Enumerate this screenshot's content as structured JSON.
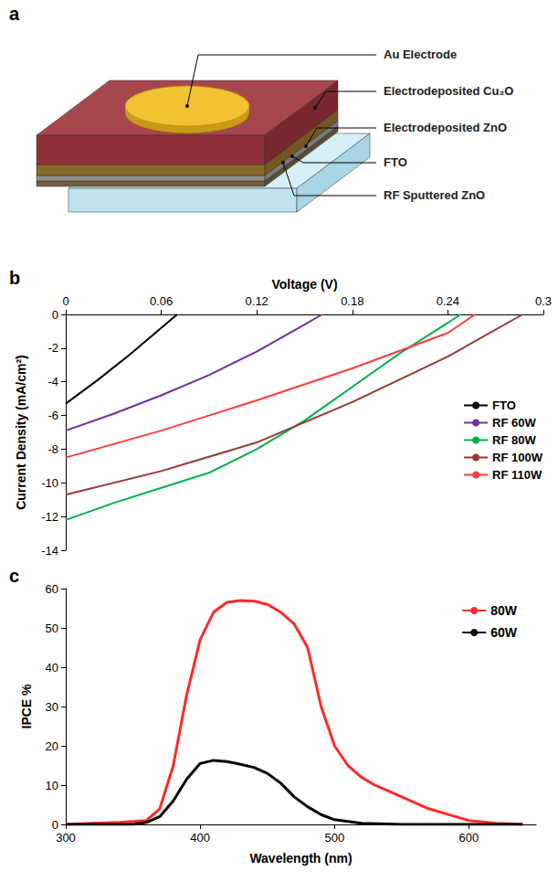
{
  "diagram": {
    "panel": "a",
    "labels": [
      "Au Electrode",
      "Electrodeposited Cu₂O",
      "Electrodeposited ZnO",
      "FTO",
      "RF Sputtered ZnO"
    ]
  },
  "chart_data": [
    {
      "panel": "b",
      "type": "line",
      "x_label": "Voltage (V)",
      "y_label": "Current Density (mA/cm²)",
      "xlim": [
        0,
        0.3
      ],
      "xticks": [
        0,
        0.06,
        0.12,
        0.18,
        0.24,
        0.3
      ],
      "ylim": [
        -14,
        0
      ],
      "yticks": [
        -14,
        -12,
        -10,
        -8,
        -6,
        -4,
        -2,
        0
      ],
      "grid": false,
      "legend": "right",
      "marker": "none",
      "line_style": "solid",
      "series": [
        {
          "name": "FTO",
          "color": "#000000",
          "x": [
            0,
            0.02,
            0.04,
            0.06,
            0.07
          ],
          "values": [
            -5.3,
            -3.9,
            -2.4,
            -0.8,
            0
          ]
        },
        {
          "name": "RF 60W",
          "color": "#7030a0",
          "x": [
            0,
            0.03,
            0.06,
            0.09,
            0.12,
            0.15,
            0.161
          ],
          "values": [
            -6.9,
            -5.9,
            -4.8,
            -3.6,
            -2.2,
            -0.6,
            0
          ]
        },
        {
          "name": "RF 80W",
          "color": "#00b050",
          "x": [
            0,
            0.03,
            0.06,
            0.09,
            0.12,
            0.15,
            0.18,
            0.21,
            0.24,
            0.248
          ],
          "values": [
            -12.2,
            -11.2,
            -10.3,
            -9.4,
            -8.0,
            -6.3,
            -4.3,
            -2.3,
            -0.5,
            0
          ]
        },
        {
          "name": "RF 100W",
          "color": "#953735",
          "x": [
            0,
            0.06,
            0.12,
            0.18,
            0.24,
            0.287
          ],
          "values": [
            -10.7,
            -9.3,
            -7.6,
            -5.2,
            -2.5,
            0
          ]
        },
        {
          "name": "RF 110W",
          "color": "#ff3b3b",
          "x": [
            0,
            0.06,
            0.12,
            0.18,
            0.24,
            0.257
          ],
          "values": [
            -8.5,
            -6.9,
            -5.1,
            -3.2,
            -1.1,
            0
          ]
        }
      ]
    },
    {
      "panel": "c",
      "type": "line",
      "x_label": "Wavelength (nm)",
      "y_label": "IPCE %",
      "xlim": [
        300,
        650
      ],
      "xticks": [
        300,
        400,
        500,
        600
      ],
      "ylim": [
        0,
        60
      ],
      "yticks": [
        0,
        10,
        20,
        30,
        40,
        50,
        60
      ],
      "grid": false,
      "legend": "top-right",
      "marker": "none",
      "line_style": "solid",
      "series": [
        {
          "name": "80W",
          "color": "#ff2a2a",
          "x": [
            300,
            320,
            340,
            360,
            370,
            380,
            390,
            400,
            410,
            420,
            430,
            440,
            450,
            460,
            470,
            480,
            490,
            500,
            510,
            520,
            530,
            540,
            550,
            560,
            570,
            580,
            590,
            600,
            620,
            640
          ],
          "values": [
            0,
            0.3,
            0.5,
            1,
            4,
            15,
            33,
            47,
            54,
            56.5,
            57,
            56.8,
            56,
            54,
            51,
            45,
            30,
            20,
            15,
            12,
            10,
            8.5,
            7,
            5.5,
            4,
            3,
            2,
            1,
            0.3,
            0
          ]
        },
        {
          "name": "60W",
          "color": "#000000",
          "x": [
            300,
            350,
            360,
            370,
            380,
            390,
            400,
            410,
            420,
            430,
            440,
            450,
            460,
            470,
            480,
            490,
            500,
            520,
            550,
            640
          ],
          "values": [
            0,
            0,
            0.5,
            2,
            6,
            11.5,
            15.5,
            16.3,
            16,
            15.3,
            14.5,
            13,
            10.5,
            7,
            4.5,
            2.5,
            1.2,
            0.3,
            0,
            0
          ]
        }
      ]
    }
  ]
}
